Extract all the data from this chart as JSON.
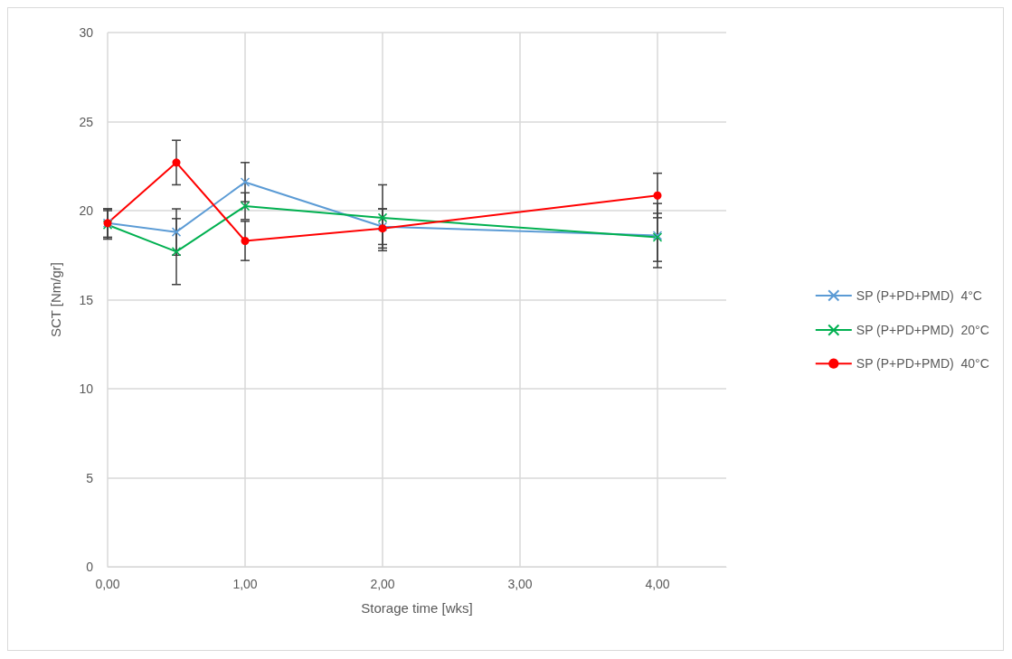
{
  "chart_data": {
    "type": "line",
    "xlabel": "Storage time [wks]",
    "ylabel": "SCT [Nm/gr]",
    "x": [
      0,
      0.5,
      1,
      2,
      4
    ],
    "xlim": [
      0,
      4.5
    ],
    "xticks": [
      {
        "value": 0,
        "label": "0,00"
      },
      {
        "value": 1,
        "label": "1,00"
      },
      {
        "value": 2,
        "label": "2,00"
      },
      {
        "value": 3,
        "label": "3,00"
      },
      {
        "value": 4,
        "label": "4,00"
      }
    ],
    "ylim": [
      0,
      30
    ],
    "yticks": [
      0,
      5,
      10,
      15,
      20,
      25,
      30
    ],
    "grid": true,
    "legend": "right",
    "line_style": "solid",
    "series": [
      {
        "name": "SP (P+PD+PMD)  4°C",
        "color": "#5b9bd5",
        "marker": "cross",
        "values": [
          19.3,
          18.8,
          21.6,
          19.1,
          18.6
        ],
        "errors": [
          0.8,
          1.3,
          1.1,
          1.0,
          1.8
        ]
      },
      {
        "name": "SP (P+PD+PMD)  20°C",
        "color": "#00b050",
        "marker": "cross",
        "values": [
          19.2,
          17.7,
          20.25,
          19.6,
          18.5
        ],
        "errors": [
          0.8,
          1.85,
          0.75,
          1.85,
          1.35
        ]
      },
      {
        "name": "SP (P+PD+PMD)  40°C",
        "color": "#ff0000",
        "marker": "circle",
        "values": [
          19.3,
          22.7,
          18.3,
          19.0,
          20.85
        ],
        "errors": [
          0.8,
          1.25,
          1.1,
          1.1,
          1.25
        ]
      }
    ]
  }
}
